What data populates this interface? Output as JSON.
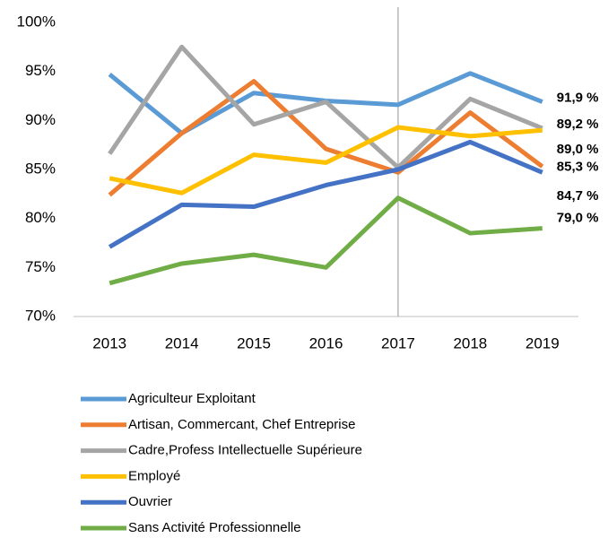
{
  "chart_data": {
    "type": "line",
    "categories": [
      "2013",
      "2014",
      "2015",
      "2016",
      "2017",
      "2018",
      "2019"
    ],
    "series": [
      {
        "name": "Agriculteur Exploitant",
        "color": "#5b9bd5",
        "values": [
          94.7,
          88.7,
          92.8,
          92.0,
          91.6,
          94.8,
          91.9
        ],
        "value_labels": [
          null,
          null,
          null,
          null,
          null,
          null,
          "91,9 %"
        ]
      },
      {
        "name": "Artisan, Commercant, Chef Entreprise",
        "color": "#ed7d31",
        "values": [
          82.4,
          88.7,
          94.0,
          87.1,
          84.7,
          90.8,
          85.3
        ],
        "value_labels": [
          null,
          null,
          null,
          null,
          null,
          null,
          "85,3 %"
        ]
      },
      {
        "name": "Cadre,Profess Intellectuelle Supérieure",
        "color": "#a5a5a5",
        "values": [
          86.6,
          97.5,
          89.6,
          91.9,
          85.2,
          92.2,
          89.2
        ],
        "value_labels": [
          null,
          null,
          null,
          null,
          null,
          null,
          "89,2 %"
        ]
      },
      {
        "name": "Employé",
        "color": "#ffc000",
        "values": [
          84.1,
          82.6,
          86.5,
          85.7,
          89.3,
          88.4,
          89.0
        ],
        "value_labels": [
          null,
          null,
          null,
          null,
          null,
          null,
          "89,0 %"
        ]
      },
      {
        "name": "Ouvrier",
        "color": "#4472c4",
        "values": [
          77.1,
          81.4,
          81.2,
          83.4,
          85.0,
          87.8,
          84.7
        ],
        "value_labels": [
          null,
          null,
          null,
          null,
          null,
          null,
          "84,7 %"
        ]
      },
      {
        "name": "Sans Activité Professionnelle",
        "color": "#70ad47",
        "values": [
          73.4,
          75.4,
          76.3,
          75.0,
          82.1,
          78.5,
          79.0
        ],
        "value_labels": [
          null,
          null,
          null,
          null,
          null,
          null,
          "79,0 %"
        ]
      }
    ],
    "ylim": [
      70,
      100
    ],
    "yticks": [
      {
        "value": 70,
        "label": "70%"
      },
      {
        "value": 75,
        "label": "75%"
      },
      {
        "value": 80,
        "label": "80%"
      },
      {
        "value": 85,
        "label": "85%"
      },
      {
        "value": 90,
        "label": "90%"
      },
      {
        "value": 95,
        "label": "95%"
      },
      {
        "value": 100,
        "label": "100%"
      }
    ],
    "grid": false,
    "marker_category_index": 4,
    "legend": "bottom"
  }
}
